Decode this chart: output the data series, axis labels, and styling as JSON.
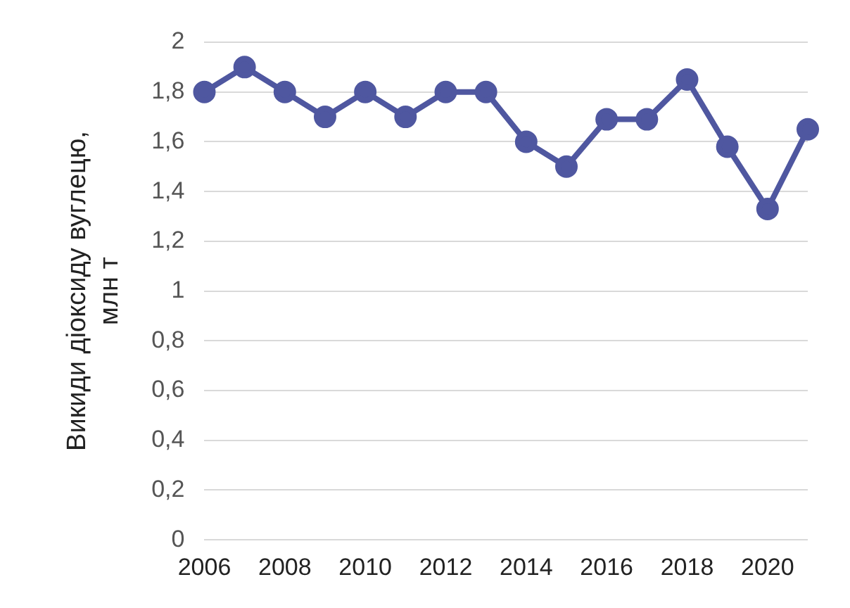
{
  "chart_data": {
    "type": "line",
    "ylabel": "Викиди діоксиду вуглецю, млн т",
    "categories": [
      "2006",
      null,
      "2008",
      null,
      "2010",
      null,
      "2012",
      null,
      "2014",
      null,
      "2016",
      null,
      "2018",
      null,
      "2020",
      null
    ],
    "series": [
      {
        "color": "#4f57a0",
        "values": [
          1.8,
          1.9,
          1.8,
          1.7,
          1.8,
          1.7,
          1.8,
          1.8,
          1.6,
          1.5,
          1.69,
          1.69,
          1.85,
          1.58,
          1.33,
          1.65
        ]
      }
    ],
    "ylim": [
      0,
      2
    ],
    "yticks": [
      0,
      {
        "value": 0.2,
        "label": "0,2"
      },
      {
        "value": 0.4,
        "label": "0,4"
      },
      {
        "value": 0.6,
        "label": "0,6"
      },
      {
        "value": 0.8,
        "label": "0,8"
      },
      1,
      {
        "value": 1.2,
        "label": "1,2"
      },
      {
        "value": 1.4,
        "label": "1,4"
      },
      {
        "value": 1.6,
        "label": "1,6"
      },
      {
        "value": 1.8,
        "label": "1,8"
      },
      2
    ],
    "grid": "y",
    "legend": false,
    "marker": "circle",
    "line_style": "solid"
  }
}
